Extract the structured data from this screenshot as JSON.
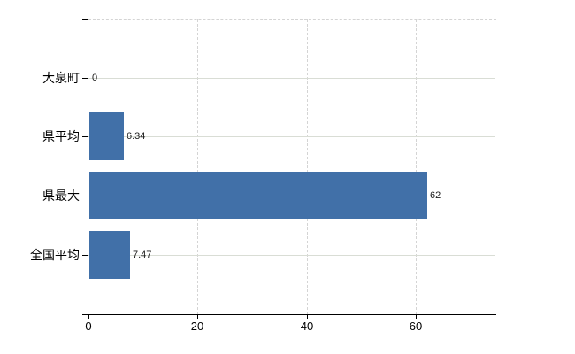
{
  "chart_data": {
    "type": "bar",
    "orientation": "horizontal",
    "title": "",
    "xlabel": "",
    "ylabel": "",
    "categories": [
      "大泉町",
      "県平均",
      "県最大",
      "全国平均"
    ],
    "values": [
      0,
      6.34,
      62,
      7.47
    ],
    "value_labels": [
      "0",
      "6.34",
      "62",
      "7.47"
    ],
    "xticks": [
      0,
      20,
      40,
      60
    ],
    "xtick_labels": [
      "0",
      "20",
      "40",
      "60"
    ],
    "xlim": [
      0,
      74.6
    ],
    "legend": "none",
    "grid": {
      "horizontal_lines": "solid, one per category row",
      "vertical_lines": "dashed, at x ticks",
      "top_border": "dashed"
    },
    "colors": {
      "bar": "#4170a8",
      "axis": "#000000",
      "grid_horizontal": "#d9ddd5",
      "grid_vertical": "#d4d4d4",
      "value_label": "#1a1a1a",
      "tick_label": "#000000",
      "background": "#ffffff"
    }
  }
}
